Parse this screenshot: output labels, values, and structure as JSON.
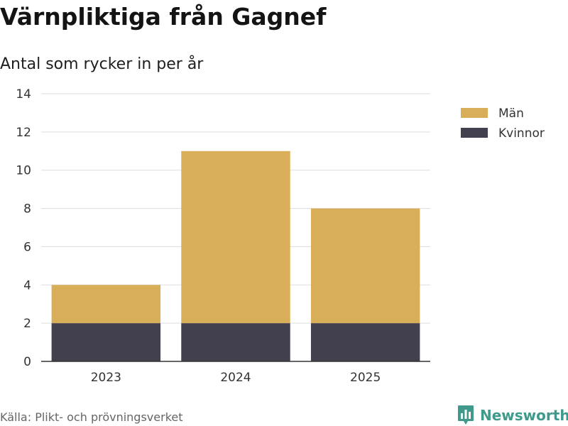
{
  "title": "Värnpliktiga från Gagnef",
  "subtitle": "Antal som rycker in per år",
  "source": "Källa: Plikt- och prövningsverket",
  "brand": "Newsworthy",
  "colors": {
    "man": "#d9ae58",
    "kvinnor": "#42404f",
    "grid": "#dddddd",
    "axis": "#333333",
    "brand": "#3f9a8c"
  },
  "chart_data": {
    "type": "bar",
    "stacked": true,
    "categories": [
      "2023",
      "2024",
      "2025"
    ],
    "series": [
      {
        "name": "Kvinnor",
        "values": [
          2,
          2,
          2
        ],
        "color": "#42404f"
      },
      {
        "name": "Män",
        "values": [
          2,
          9,
          6
        ],
        "color": "#d9ae58"
      }
    ],
    "yticks": [
      "0",
      "2",
      "4",
      "6",
      "8",
      "10",
      "12",
      "14"
    ],
    "ylim": [
      0,
      14
    ],
    "legend": [
      {
        "name": "Män",
        "color": "#d9ae58"
      },
      {
        "name": "Kvinnor",
        "color": "#42404f"
      }
    ],
    "legend_position": "right",
    "grid": true,
    "xlabel": "",
    "ylabel": ""
  }
}
